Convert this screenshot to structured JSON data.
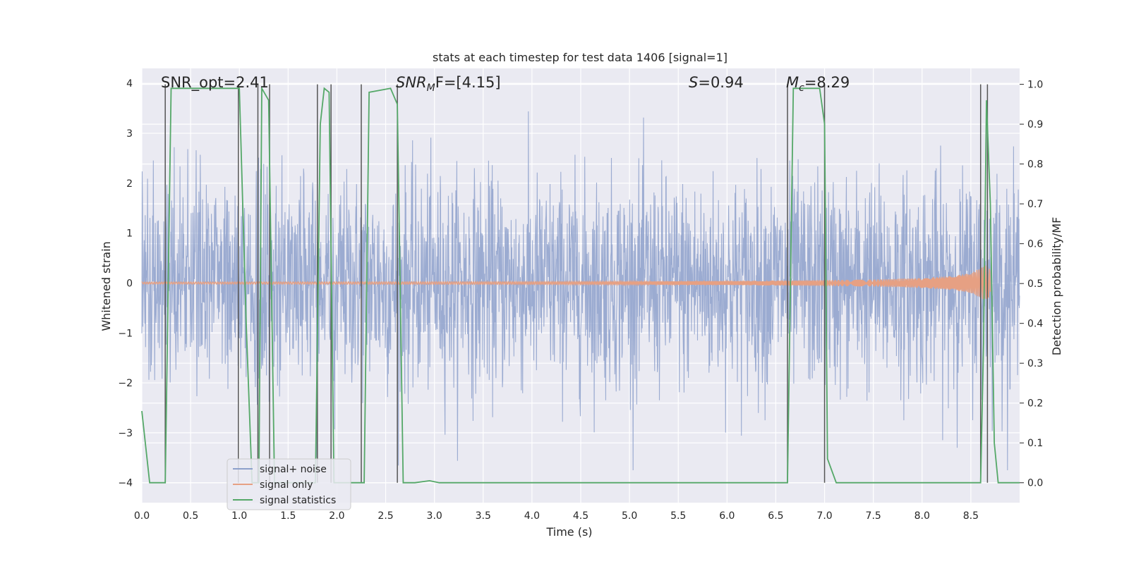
{
  "chart_data": {
    "type": "line",
    "title": "stats at each timestep for test data 1406 [signal=1]",
    "xlabel": "Time (s)",
    "ylabel": "Whitened strain",
    "ylabel_right": "Detection probability/MF",
    "xlim": [
      0,
      9.0
    ],
    "ylim": [
      -4.4,
      4.3
    ],
    "ylim_right": [
      -0.05,
      1.04
    ],
    "x_ticks": [
      0.0,
      0.5,
      1.0,
      1.5,
      2.0,
      2.5,
      3.0,
      3.5,
      4.0,
      4.5,
      5.0,
      5.5,
      6.0,
      6.5,
      7.0,
      7.5,
      8.0,
      8.5
    ],
    "x_tick_labels": [
      "0.0",
      "0.5",
      "1.0",
      "1.5",
      "2.0",
      "2.5",
      "3.0",
      "3.5",
      "4.0",
      "4.5",
      "5.0",
      "5.5",
      "6.0",
      "6.5",
      "7.0",
      "7.5",
      "8.0",
      "8.5"
    ],
    "y_ticks": [
      -4,
      -3,
      -2,
      -1,
      0,
      1,
      2,
      3,
      4
    ],
    "y_tick_labels": [
      "−4",
      "−3",
      "−2",
      "−1",
      "0",
      "1",
      "2",
      "3",
      "4"
    ],
    "y_ticks_right": [
      0.0,
      0.1,
      0.2,
      0.3,
      0.4,
      0.5,
      0.6,
      0.7,
      0.8,
      0.9,
      1.0
    ],
    "y_tick_labels_right": [
      "0.0",
      "0.1",
      "0.2",
      "0.3",
      "0.4",
      "0.5",
      "0.6",
      "0.7",
      "0.8",
      "0.9",
      "1.0"
    ],
    "grid": true,
    "annotations": {
      "snr_opt": "SNR_opt=2.41",
      "snr_mf_math": "SNR",
      "snr_mf_sub": "M",
      "snr_mf_rest": "F=[4.15]",
      "s_math": "S",
      "s_rest": "=0.94",
      "mc_math": "M",
      "mc_sub": "c",
      "mc_rest": "=8.29"
    },
    "legend_placement": "lower-left",
    "colors": {
      "noise": "#8da0cb",
      "signal": "#e6a083",
      "stats": "#55a868",
      "vline": "#555555",
      "plot_bg": "#eaeaf2"
    },
    "series": [
      {
        "name": "signal+ noise",
        "key": "noise",
        "description_values": "Gaussian whitened noise around 0, amplitude range approximately -3.7 to 3.6"
      },
      {
        "name": "signal only",
        "key": "signal",
        "x": [
          0.0,
          5.0,
          6.0,
          6.5,
          7.0,
          7.5,
          8.0,
          8.3,
          8.5,
          8.6,
          8.65,
          8.7
        ],
        "envelope": [
          0.02,
          0.03,
          0.04,
          0.05,
          0.06,
          0.07,
          0.1,
          0.14,
          0.2,
          0.3,
          0.35,
          0.28
        ]
      },
      {
        "name": "signal statistics",
        "key": "stats",
        "x": [
          0.0,
          0.08,
          0.24,
          0.3,
          1.0,
          1.07,
          1.13,
          1.2,
          1.23,
          1.3,
          1.36,
          1.75,
          1.78,
          1.83,
          1.87,
          1.92,
          1.97,
          2.03,
          2.1,
          2.23,
          2.28,
          2.33,
          2.55,
          2.62,
          2.68,
          2.8,
          2.95,
          3.05,
          4.0,
          5.0,
          6.0,
          6.62,
          6.68,
          6.72,
          6.95,
          7.0,
          7.03,
          7.12,
          7.5,
          8.0,
          8.55,
          8.6,
          8.63,
          8.66,
          8.7,
          8.74,
          8.78,
          9.0
        ],
        "y": [
          0.18,
          0.0,
          0.0,
          0.99,
          0.99,
          0.4,
          0.0,
          0.0,
          0.99,
          0.96,
          0.0,
          0.0,
          0.0,
          0.9,
          0.99,
          0.98,
          0.0,
          0.0,
          0.0,
          0.0,
          0.0,
          0.98,
          0.99,
          0.95,
          0.0,
          0.0,
          0.005,
          0.0,
          0.0,
          0.0,
          0.0,
          0.0,
          0.99,
          0.99,
          0.99,
          0.9,
          0.06,
          0.0,
          0.0,
          0.0,
          0.0,
          0.0,
          0.35,
          0.96,
          0.7,
          0.1,
          0.0,
          0.0
        ]
      }
    ],
    "vertical_lines": [
      0.24,
      0.99,
      1.19,
      1.31,
      1.8,
      1.94,
      2.25,
      2.62,
      6.62,
      7.0,
      8.6,
      8.67
    ]
  },
  "legend": {
    "items": [
      {
        "label": "signal+ noise",
        "color": "#8da0cb"
      },
      {
        "label": "signal only",
        "color": "#e6a083"
      },
      {
        "label": "signal statistics",
        "color": "#55a868"
      }
    ]
  }
}
